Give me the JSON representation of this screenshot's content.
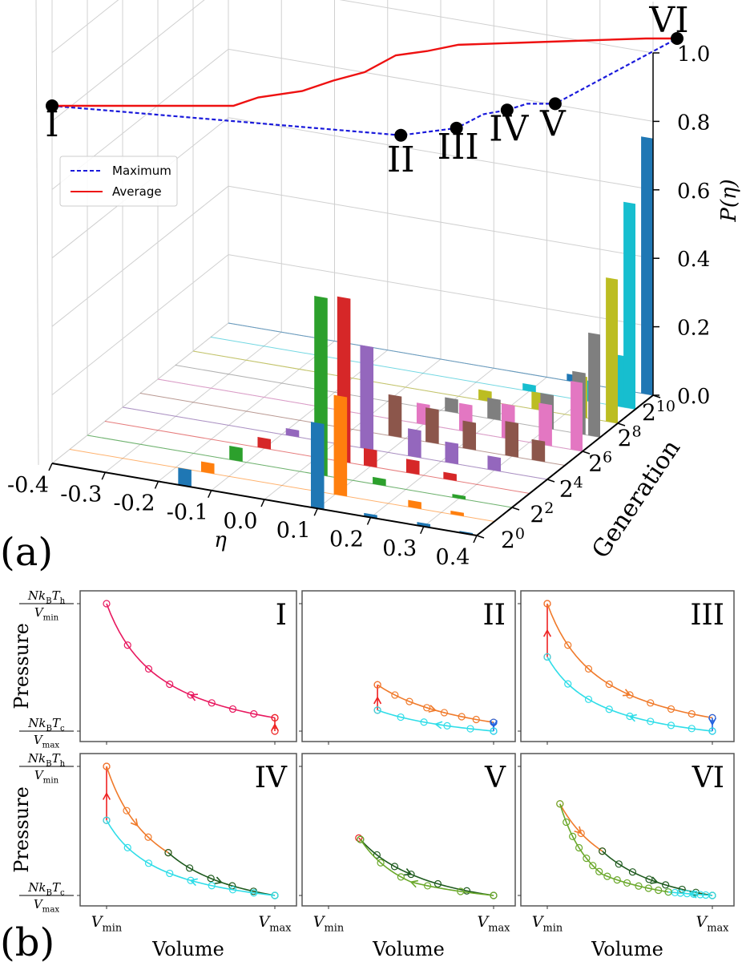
{
  "chart_data": [
    {
      "type": "bar3d",
      "panel_label": "(a)",
      "xlabel": "η",
      "ylabel": "Generation",
      "zlabel": "P(η)",
      "xlim": [
        -0.4,
        0.4
      ],
      "ylim_log2": [
        0,
        10
      ],
      "zlim": [
        0,
        1.0
      ],
      "grid": true,
      "x_ticks": [
        "-0.4",
        "-0.3",
        "-0.2",
        "-0.1",
        "0.0",
        "0.1",
        "0.2",
        "0.3",
        "0.4"
      ],
      "y_ticks": [
        "2^0",
        "2^2",
        "2^4",
        "2^6",
        "2^8",
        "2^{10}"
      ],
      "z_ticks": [
        "0.0",
        "0.2",
        "0.4",
        "0.6",
        "0.8",
        "1.0"
      ],
      "colors": [
        "#1f77b4",
        "#ff7f0e",
        "#2ca02c",
        "#d62728",
        "#9467bd",
        "#8c564b",
        "#e377c2",
        "#7f7f7f",
        "#bcbd22",
        "#17becf"
      ],
      "histograms": [
        {
          "log2_generation": 0,
          "bars": [
            [
              -0.15,
              0.05
            ],
            [
              0.1,
              0.25
            ],
            [
              0.2,
              0.01
            ],
            [
              0.3,
              0.01
            ],
            [
              0.38,
              0.005
            ]
          ]
        },
        {
          "log2_generation": 1,
          "bars": [
            [
              -0.14,
              0.03
            ],
            [
              0.11,
              0.29
            ],
            [
              0.25,
              0.02
            ],
            [
              0.33,
              0.01
            ]
          ]
        },
        {
          "log2_generation": 2,
          "bars": [
            [
              -0.12,
              0.04
            ],
            [
              0.04,
              0.52
            ],
            [
              0.15,
              0.02
            ],
            [
              0.3,
              0.01
            ]
          ]
        },
        {
          "log2_generation": 3,
          "bars": [
            [
              -0.1,
              0.03
            ],
            [
              0.05,
              0.48
            ],
            [
              0.1,
              0.05
            ],
            [
              0.18,
              0.04
            ],
            [
              0.25,
              0.02
            ]
          ]
        },
        {
          "log2_generation": 4,
          "bars": [
            [
              -0.08,
              0.02
            ],
            [
              0.06,
              0.3
            ],
            [
              0.15,
              0.08
            ],
            [
              0.22,
              0.06
            ],
            [
              0.3,
              0.04
            ]
          ]
        },
        {
          "log2_generation": 5,
          "bars": [
            [
              0.08,
              0.12
            ],
            [
              0.15,
              0.1
            ],
            [
              0.22,
              0.08
            ],
            [
              0.3,
              0.1
            ],
            [
              0.35,
              0.06
            ]
          ]
        },
        {
          "log2_generation": 6,
          "bars": [
            [
              0.1,
              0.06
            ],
            [
              0.18,
              0.08
            ],
            [
              0.26,
              0.1
            ],
            [
              0.33,
              0.12
            ],
            [
              0.39,
              0.2
            ]
          ]
        },
        {
          "log2_generation": 7,
          "bars": [
            [
              0.12,
              0.04
            ],
            [
              0.2,
              0.06
            ],
            [
              0.3,
              0.1
            ],
            [
              0.36,
              0.18
            ],
            [
              0.39,
              0.3
            ]
          ]
        },
        {
          "log2_generation": 8,
          "bars": [
            [
              0.15,
              0.03
            ],
            [
              0.25,
              0.05
            ],
            [
              0.33,
              0.12
            ],
            [
              0.39,
              0.42
            ]
          ]
        },
        {
          "log2_generation": 9,
          "bars": [
            [
              0.2,
              0.02
            ],
            [
              0.3,
              0.06
            ],
            [
              0.37,
              0.15
            ],
            [
              0.39,
              0.6
            ]
          ]
        },
        {
          "log2_generation": 10,
          "bars": [
            [
              0.25,
              0.02
            ],
            [
              0.35,
              0.08
            ],
            [
              0.39,
              0.75
            ]
          ]
        }
      ],
      "legend": {
        "placement": "upper-left",
        "entries": [
          {
            "label": "Maximum",
            "color": "#1a1adb",
            "style": "dashed"
          },
          {
            "label": "Average",
            "color": "#ee1111",
            "style": "solid"
          }
        ]
      },
      "series": [
        {
          "name": "Maximum",
          "log2_generation": [
            0,
            5.58,
            6.47,
            6.9,
            7.28,
            7.6,
            8.05,
            10
          ],
          "P": [
            0.84,
            0.77,
            0.787,
            0.82,
            0.83,
            0.845,
            0.845,
            1.0
          ]
        },
        {
          "name": "Average",
          "log2_generation": [
            0,
            2.9,
            3.3,
            4.0,
            4.5,
            5.0,
            5.5,
            6.0,
            6.5,
            7.5,
            8.5,
            9.5,
            10
          ],
          "P": [
            0.84,
            0.84,
            0.86,
            0.875,
            0.9,
            0.92,
            0.96,
            0.97,
            0.985,
            0.99,
            0.995,
            1.0,
            1.0
          ]
        }
      ],
      "annotations": [
        {
          "label": "I",
          "log2_generation": 0,
          "P": 0.84
        },
        {
          "label": "II",
          "log2_generation": 5.58,
          "P": 0.77
        },
        {
          "label": "III",
          "log2_generation": 6.47,
          "P": 0.787
        },
        {
          "label": "IV",
          "log2_generation": 7.28,
          "P": 0.83
        },
        {
          "label": "V",
          "log2_generation": 8.05,
          "P": 0.845
        },
        {
          "label": "VI",
          "log2_generation": 10,
          "P": 1.0
        }
      ]
    },
    {
      "type": "line",
      "panel_label": "(b)",
      "xlabel": "Volume",
      "ylabel": "Pressure",
      "x_ticks": [
        "V_{min}",
        "V_{max}"
      ],
      "y_ticks": [
        {
          "num": "Nk_{B}T_{h}",
          "den": "V_{min}"
        },
        {
          "num": "Nk_{B}T_{c}",
          "den": "V_{max}"
        }
      ],
      "V_range": [
        1,
        4
      ],
      "P_range": [
        0.1625,
        1
      ],
      "panels": [
        {
          "label": "I",
          "strokes": [
            {
              "color": "#e8185f",
              "points": [
                [
                  4,
                  0.25
                ],
                [
                  1,
                  1
                ]
              ],
              "markers": 9,
              "arrow": true
            },
            {
              "color": "#ee2222",
              "points": [
                [
                  4,
                  0.1625
                ],
                [
                  4,
                  0.25
                ]
              ],
              "markers": 2,
              "arrow": true
            }
          ]
        },
        {
          "label": "II",
          "strokes": [
            {
              "color": "#ee2222",
              "points": [
                [
                  1.89,
                  0.3
                ],
                [
                  1.89,
                  0.467
                ]
              ],
              "markers": 2,
              "arrow": true
            },
            {
              "color": "#f07a2a",
              "points": [
                [
                  1.89,
                  0.467
                ],
                [
                  4,
                  0.22
                ]
              ],
              "markers": 8,
              "arrow": true
            },
            {
              "color": "#2060e0",
              "points": [
                [
                  4,
                  0.22
                ],
                [
                  4,
                  0.1625
                ]
              ],
              "markers": 2,
              "arrow": true
            },
            {
              "color": "#2fdde8",
              "points": [
                [
                  4,
                  0.1625
                ],
                [
                  1.89,
                  0.3
                ]
              ],
              "markers": 6,
              "arrow": true
            }
          ]
        },
        {
          "label": "III",
          "strokes": [
            {
              "color": "#ee2222",
              "points": [
                [
                  1,
                  0.65
                ],
                [
                  1,
                  1
                ]
              ],
              "markers": 2,
              "arrow": true
            },
            {
              "color": "#f07a2a",
              "points": [
                [
                  1,
                  1
                ],
                [
                  4,
                  0.25
                ]
              ],
              "markers": 9,
              "arrow": true
            },
            {
              "color": "#2060e0",
              "points": [
                [
                  4,
                  0.25
                ],
                [
                  4,
                  0.1625
                ]
              ],
              "markers": 2,
              "arrow": true
            },
            {
              "color": "#2fdde8",
              "points": [
                [
                  4,
                  0.1625
                ],
                [
                  1,
                  0.65
                ]
              ],
              "markers": 9,
              "arrow": true
            }
          ]
        },
        {
          "label": "IV",
          "strokes": [
            {
              "color": "#ee2222",
              "points": [
                [
                  1,
                  0.65
                ],
                [
                  1,
                  1
                ]
              ],
              "markers": 2,
              "arrow": true
            },
            {
              "color": "#f07a2a",
              "points": [
                [
                  1,
                  1
                ],
                [
                  2.1,
                  0.44
                ]
              ],
              "markers": 4,
              "arrow": true
            },
            {
              "color": "#1e5a1e",
              "points": [
                [
                  2.1,
                  0.44
                ],
                [
                  4,
                  0.1625
                ]
              ],
              "markers": 6,
              "arrow": true
            },
            {
              "color": "#2fdde8",
              "points": [
                [
                  4,
                  0.1625
                ],
                [
                  1,
                  0.65
                ]
              ],
              "markers": 9,
              "arrow": true
            }
          ]
        },
        {
          "label": "V",
          "strokes": [
            {
              "color": "#ee2222",
              "points": [
                [
                  1.55,
                  0.535
                ],
                [
                  1.6,
                  0.52
                ]
              ],
              "markers": 1,
              "arrow": false
            },
            {
              "color": "#1e5a1e",
              "points": [
                [
                  1.58,
                  0.526
                ],
                [
                  2.5,
                  0.3
                ],
                [
                  4,
                  0.1625
                ]
              ],
              "markers": 7,
              "arrow": true
            },
            {
              "color": "#6aa82a",
              "points": [
                [
                  4,
                  0.1625
                ],
                [
                  2.5,
                  0.25
                ],
                [
                  1.58,
                  0.526
                ]
              ],
              "markers": 6,
              "arrow": true
            }
          ]
        },
        {
          "label": "VI",
          "strokes": [
            {
              "color": "#f07a2a",
              "points": [
                [
                  1.23,
                  0.757
                ],
                [
                  2.0,
                  0.45
                ]
              ],
              "markers": 3,
              "arrow": true
            },
            {
              "color": "#1e5a1e",
              "points": [
                [
                  2.0,
                  0.45
                ],
                [
                  4,
                  0.1625
                ]
              ],
              "markers": 8,
              "arrow": true
            },
            {
              "color": "#2fdde8",
              "points": [
                [
                  4,
                  0.1625
                ],
                [
                  3.2,
                  0.185
                ]
              ],
              "markers": 8,
              "arrow": true
            },
            {
              "color": "#6aa82a",
              "points": [
                [
                  3.2,
                  0.185
                ],
                [
                  2.0,
                  0.3
                ],
                [
                  1.23,
                  0.757
                ]
              ],
              "markers": 14,
              "arrow": false
            }
          ]
        }
      ]
    }
  ]
}
